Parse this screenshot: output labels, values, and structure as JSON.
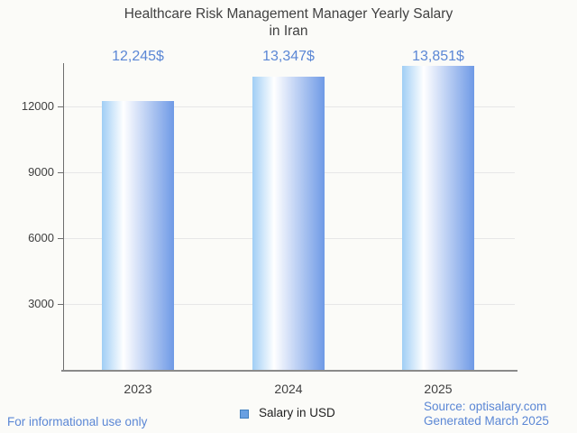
{
  "title": {
    "line1": "Healthcare Risk Management Manager Yearly Salary",
    "line2": "in Iran"
  },
  "chart_data": {
    "type": "bar",
    "categories": [
      "2023",
      "2024",
      "2025"
    ],
    "values": [
      12245,
      13347,
      13851
    ],
    "value_labels": [
      "12,245$",
      "13,347$",
      "13,851$"
    ],
    "series": [
      {
        "name": "Salary in USD",
        "values": [
          12245,
          13347,
          13851
        ]
      }
    ],
    "title": "Healthcare Risk Management Manager Yearly Salary in Iran",
    "xlabel": "",
    "ylabel": "",
    "y_tick_labels": [
      "3000",
      "6000",
      "9000",
      "12000"
    ],
    "ylim": [
      0,
      14000
    ],
    "grid": true,
    "legend_position": "bottom-center",
    "bar_gradient": [
      "#a0cef5",
      "#ffffff",
      "#6f9ae6"
    ]
  },
  "legend": {
    "label": "Salary in USD",
    "marker_color": "#68a0e2",
    "marker_border_color": "#4080c0"
  },
  "footer": {
    "disclaimer": "For informational use only",
    "source": "Source: optisalary.com",
    "generated": "Generated March 2025"
  },
  "colors": {
    "background": "#fbfbf8",
    "accent_text": "#5b87d5",
    "title_text": "#414141",
    "axis_text": "#3f3f3f",
    "gridline": "#e7e7e7",
    "axis_line": "#6e6e6e"
  }
}
